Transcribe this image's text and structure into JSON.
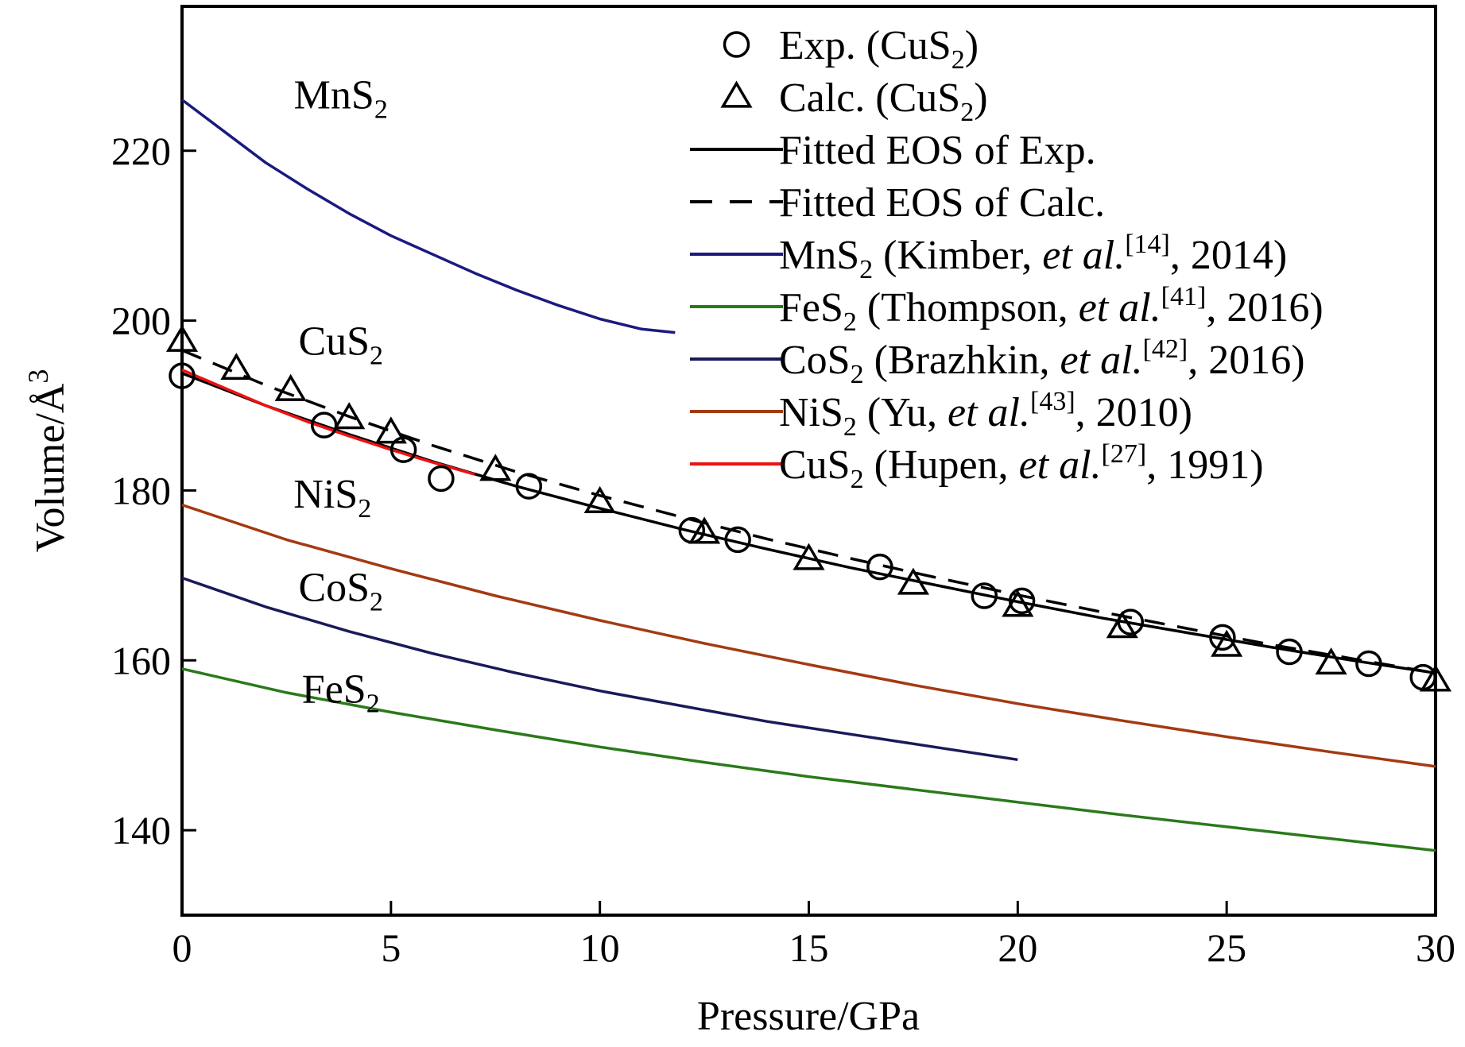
{
  "chart_data": {
    "type": "line",
    "xlabel": "Pressure/GPa",
    "ylabel": "Volume/Å",
    "ylabel_sup": "3",
    "xlim": [
      0,
      30
    ],
    "ylim": [
      130,
      237
    ],
    "xticks": [
      0,
      5,
      10,
      15,
      20,
      25,
      30
    ],
    "yticks": [
      140,
      160,
      180,
      200,
      220
    ],
    "grid": false,
    "legend_position": "top-right",
    "curve_labels": [
      {
        "series": "MnS2",
        "base": "MnS",
        "sub": "2",
        "x": 3.8,
        "y": 225
      },
      {
        "series": "CuS2",
        "base": "CuS",
        "sub": "2",
        "x": 3.8,
        "y": 196
      },
      {
        "series": "NiS2",
        "base": "NiS",
        "sub": "2",
        "x": 3.6,
        "y": 178
      },
      {
        "series": "CoS2",
        "base": "CoS",
        "sub": "2",
        "x": 3.8,
        "y": 167
      },
      {
        "series": "FeS2",
        "base": "FeS",
        "sub": "2",
        "x": 3.8,
        "y": 155
      }
    ],
    "series": [
      {
        "name": "Exp. (CuS2)",
        "legend": {
          "pre": "Exp. (CuS",
          "sub": "2",
          "post": ")"
        },
        "kind": "marker",
        "marker": "circle",
        "color": "#000000",
        "x": [
          0,
          3.4,
          5.3,
          6.2,
          8.3,
          12.2,
          13.3,
          16.7,
          19.2,
          20.1,
          22.7,
          24.9,
          26.5,
          28.4,
          29.7
        ],
        "y": [
          193.5,
          187.7,
          184.8,
          181.4,
          180.5,
          175.3,
          174.2,
          171.0,
          167.6,
          167.0,
          164.5,
          162.7,
          161.0,
          159.6,
          158.0
        ]
      },
      {
        "name": "Calc. (CuS2)",
        "legend": {
          "pre": "Calc. (CuS",
          "sub": "2",
          "post": ")"
        },
        "kind": "marker",
        "marker": "triangle",
        "color": "#000000",
        "x": [
          0,
          1.3,
          2.6,
          4.0,
          5.0,
          7.5,
          10.0,
          12.5,
          15.0,
          17.5,
          20.0,
          22.5,
          25.0,
          27.5,
          30.0
        ],
        "y": [
          197.6,
          194.3,
          191.8,
          188.5,
          186.8,
          182.4,
          178.6,
          175.0,
          171.9,
          169.0,
          166.4,
          163.9,
          161.7,
          159.6,
          157.6
        ]
      },
      {
        "name": "Fitted EOS of Exp.",
        "legend": {
          "pre": "Fitted EOS of Exp.",
          "sub": "",
          "post": ""
        },
        "kind": "line",
        "dash": false,
        "color": "#000000",
        "x": [
          0,
          2,
          4,
          6,
          8,
          10,
          12,
          14,
          16,
          18,
          20,
          22,
          24,
          26,
          28,
          30
        ],
        "y": [
          193.8,
          190.0,
          186.6,
          183.4,
          180.5,
          177.9,
          175.4,
          173.1,
          170.9,
          168.9,
          166.9,
          165.0,
          163.3,
          161.6,
          160.0,
          158.5
        ]
      },
      {
        "name": "Fitted EOS of Calc.",
        "legend": {
          "pre": "Fitted EOS of Calc.",
          "sub": "",
          "post": ""
        },
        "kind": "line",
        "dash": true,
        "color": "#000000",
        "x": [
          0,
          2,
          4,
          6,
          8,
          10,
          12,
          14,
          16,
          18,
          20,
          22,
          24,
          26,
          28,
          30
        ],
        "y": [
          196.5,
          192.4,
          188.7,
          185.3,
          182.2,
          179.4,
          176.8,
          174.3,
          172.0,
          169.8,
          167.7,
          165.7,
          163.8,
          161.9,
          160.2,
          158.5
        ]
      },
      {
        "name": "MnS2 (Kimber, et al.[14], 2014)",
        "legend": {
          "pre": "MnS",
          "sub": "2",
          "post": " (Kimber, ",
          "em": "et al.",
          "sup": "[14]",
          "tail": ", 2014)"
        },
        "kind": "line",
        "dash": false,
        "color": "#1a1a80",
        "x": [
          0,
          1,
          2,
          3,
          4,
          5,
          6,
          7,
          8,
          9,
          10,
          11,
          11.8
        ],
        "y": [
          226.0,
          222.3,
          218.6,
          215.5,
          212.6,
          210.0,
          207.8,
          205.6,
          203.6,
          201.8,
          200.2,
          199.0,
          198.6
        ]
      },
      {
        "name": "FeS2 (Thompson, et al.[41], 2016)",
        "legend": {
          "pre": "FeS",
          "sub": "2",
          "post": " (Thompson, ",
          "em": "et al.",
          "sup": "[41]",
          "tail": ", 2016)"
        },
        "kind": "line",
        "dash": false,
        "color": "#2a7a1a",
        "x": [
          0,
          2.5,
          5,
          7.5,
          10,
          12.5,
          15,
          17.5,
          20,
          22.5,
          25,
          27.5,
          30
        ],
        "y": [
          159.0,
          156.2,
          153.9,
          151.8,
          149.8,
          148.0,
          146.3,
          144.8,
          143.3,
          141.8,
          140.4,
          139.0,
          137.6
        ]
      },
      {
        "name": "CoS2 (Brazhkin, et al.[42], 2016)",
        "legend": {
          "pre": "CoS",
          "sub": "2",
          "post": " (Brazhkin, ",
          "em": "et al.",
          "sup": "[42]",
          "tail": ", 2016)"
        },
        "kind": "line",
        "dash": false,
        "color": "#1a1a5a",
        "x": [
          0,
          2,
          4,
          6,
          8,
          10,
          12,
          14,
          16,
          18,
          20
        ],
        "y": [
          169.7,
          166.3,
          163.4,
          160.8,
          158.5,
          156.4,
          154.6,
          152.8,
          151.3,
          149.8,
          148.3
        ]
      },
      {
        "name": "NiS2 (Yu, et al.[43], 2010)",
        "legend": {
          "pre": "NiS",
          "sub": "2",
          "post": " (Yu, ",
          "em": "et al.",
          "sup": "[43]",
          "tail": ", 2010)"
        },
        "kind": "line",
        "dash": false,
        "color": "#a33a12",
        "x": [
          0,
          2.5,
          5,
          7.5,
          10,
          12.5,
          15,
          17.5,
          20,
          22.5,
          25,
          27.5,
          30
        ],
        "y": [
          178.3,
          174.2,
          170.8,
          167.6,
          164.7,
          162.0,
          159.5,
          157.1,
          154.9,
          152.9,
          151.0,
          149.2,
          147.5
        ]
      },
      {
        "name": "CuS2 (Hupen, et al.[27], 1991)",
        "legend": {
          "pre": "CuS",
          "sub": "2",
          "post": " (Hupen, ",
          "em": "et al.",
          "sup": "[27]",
          "tail": ", 1991)"
        },
        "kind": "line",
        "dash": false,
        "color": "#ee1111",
        "x": [
          0,
          1,
          2,
          3,
          4,
          5,
          6,
          7
        ],
        "y": [
          194.2,
          192.1,
          190.0,
          188.1,
          186.4,
          184.8,
          183.3,
          181.9
        ]
      }
    ]
  }
}
